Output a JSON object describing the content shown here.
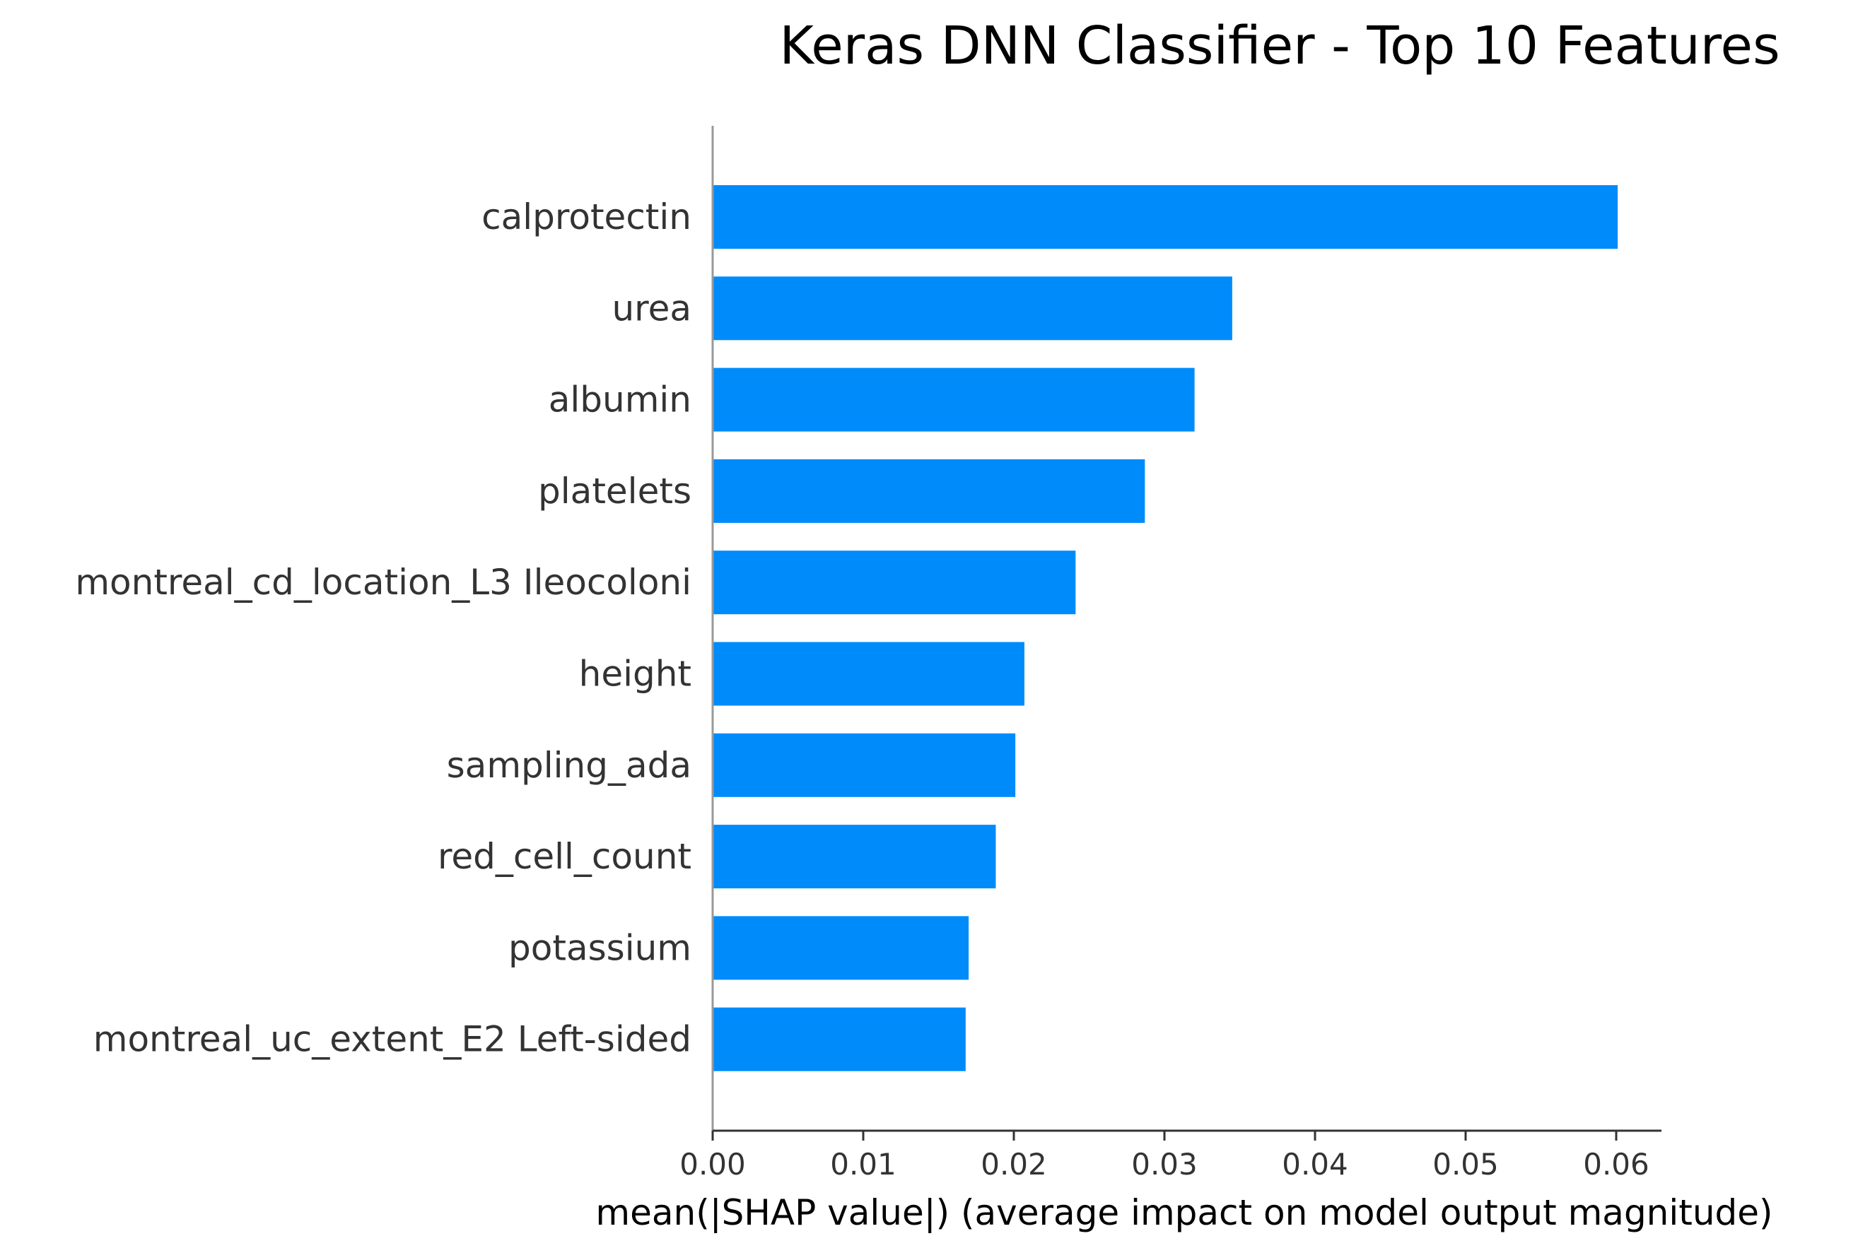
{
  "chart_data": {
    "type": "bar",
    "orientation": "horizontal",
    "title": "Keras DNN Classifier - Top 10 Features",
    "xlabel": "mean(|SHAP value|) (average impact on model output magnitude)",
    "ylabel": "",
    "categories": [
      "calprotectin",
      "urea",
      "albumin",
      "platelets",
      "montreal_cd_location_L3 Ileocoloni",
      "height",
      "sampling_ada",
      "red_cell_count",
      "potassium",
      "montreal_uc_extent_E2 Left-sided"
    ],
    "values": [
      0.0601,
      0.0345,
      0.032,
      0.0287,
      0.0241,
      0.0207,
      0.0201,
      0.0188,
      0.017,
      0.0168
    ],
    "xlim": [
      0,
      0.063
    ],
    "xticks": [
      0.0,
      0.01,
      0.02,
      0.03,
      0.04,
      0.05,
      0.06
    ],
    "xtick_labels": [
      "0.00",
      "0.01",
      "0.02",
      "0.03",
      "0.04",
      "0.05",
      "0.06"
    ],
    "bar_color": "#008bfb",
    "grid": false,
    "legend": "none"
  }
}
